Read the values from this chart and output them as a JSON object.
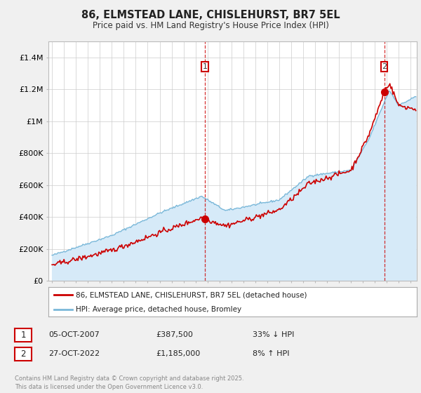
{
  "title": "86, ELMSTEAD LANE, CHISLEHURST, BR7 5EL",
  "subtitle": "Price paid vs. HM Land Registry's House Price Index (HPI)",
  "legend_house": "86, ELMSTEAD LANE, CHISLEHURST, BR7 5EL (detached house)",
  "legend_hpi": "HPI: Average price, detached house, Bromley",
  "annotation1_date": "05-OCT-2007",
  "annotation1_price": "£387,500",
  "annotation1_hpi": "33% ↓ HPI",
  "annotation2_date": "27-OCT-2022",
  "annotation2_price": "£1,185,000",
  "annotation2_hpi": "8% ↑ HPI",
  "copyright": "Contains HM Land Registry data © Crown copyright and database right 2025.\nThis data is licensed under the Open Government Licence v3.0.",
  "house_color": "#cc0000",
  "hpi_color": "#7ab8d9",
  "hpi_fill_color": "#d6eaf8",
  "annotation_color": "#cc0000",
  "ylim": [
    0,
    1500000
  ],
  "yticks": [
    0,
    200000,
    400000,
    600000,
    800000,
    1000000,
    1200000,
    1400000
  ],
  "ytick_labels": [
    "£0",
    "£200K",
    "£400K",
    "£600K",
    "£800K",
    "£1M",
    "£1.2M",
    "£1.4M"
  ],
  "background_color": "#f0f0f0",
  "plot_background": "#ffffff",
  "sale1_year": 2007.79,
  "sale1_val": 387500,
  "sale2_year": 2022.79,
  "sale2_val": 1185000
}
